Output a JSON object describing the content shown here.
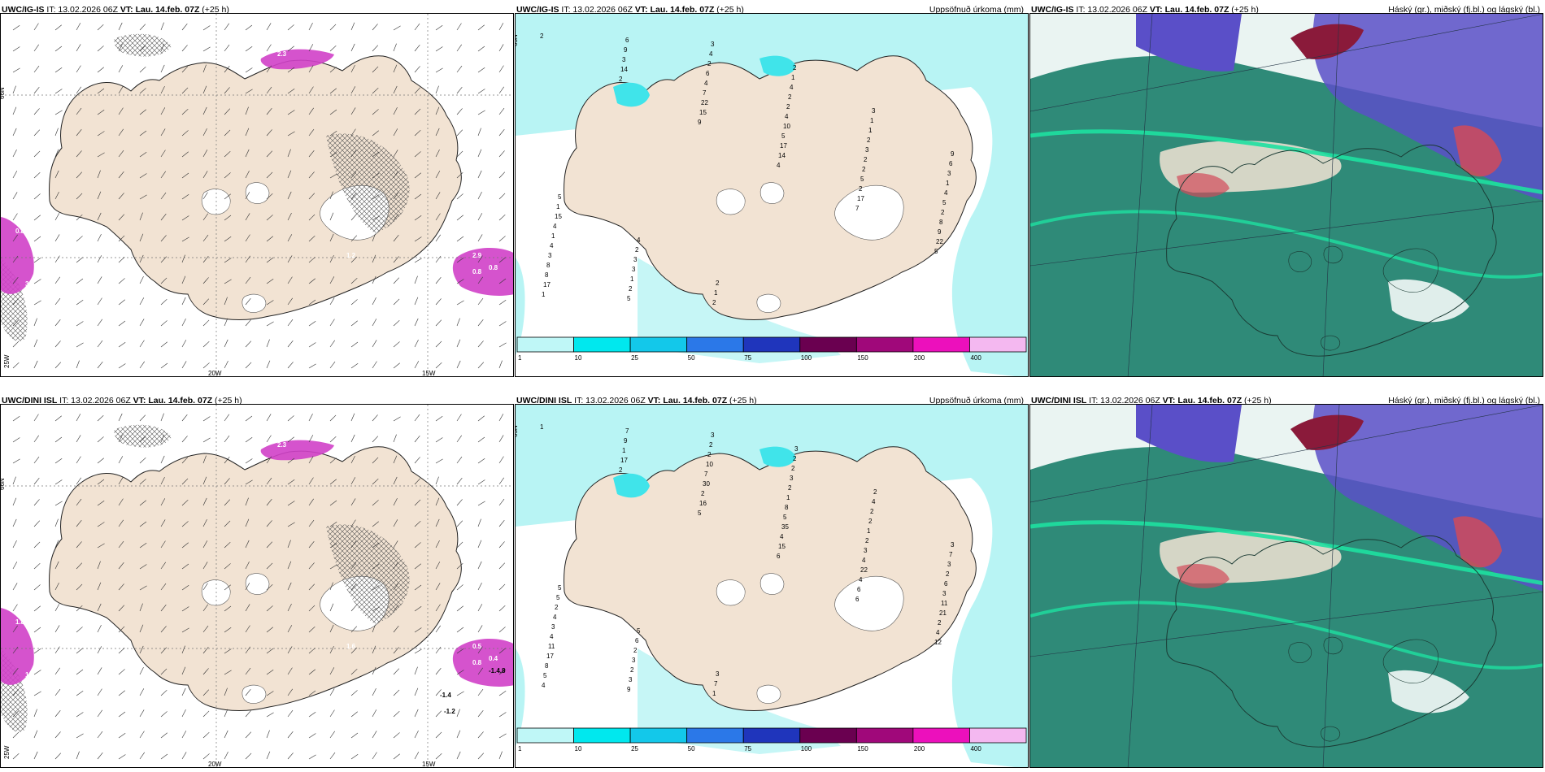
{
  "rows": [
    {
      "model": "UWC/IG-IS",
      "panels": [
        {
          "it": "IT: 13.02.2026 06Z",
          "vt": "VT: Lau. 14.feb. 07Z",
          "lead": "(+25 h)",
          "right": ""
        },
        {
          "it": "IT: 13.02.2026 06Z",
          "vt": "VT: Lau. 14.feb. 07Z",
          "lead": "(+25 h)",
          "right": "Uppsöfnuð úrkoma (mm)"
        },
        {
          "it": "IT: 13.02.2026 06Z",
          "vt": "VT: Lau. 14.feb. 07Z",
          "lead": "(+25 h)",
          "right": "Háský (gr.), miðský (fj.bl.) og lágský (bl.)"
        }
      ],
      "temp_labels": [
        "2.3",
        "0.8",
        "1.1",
        "0.8",
        "3.4",
        "2.9",
        "0.8",
        "1.8",
        "1.2"
      ],
      "precip_labels": [
        "2",
        "2",
        "9",
        "4",
        "7",
        "5",
        "1",
        "14",
        "15",
        "14",
        "17",
        "22",
        "17",
        "3",
        "22",
        "17",
        "2",
        "9",
        "8",
        "9",
        "7",
        "5",
        "5",
        "8",
        "8",
        "6",
        "4",
        "10",
        "2",
        "2",
        "3",
        "5",
        "6",
        "4",
        "2",
        "5",
        "4",
        "2",
        "2",
        "2",
        "3",
        "4",
        "1",
        "1",
        "4",
        "2",
        "2",
        "1",
        "4",
        "3",
        "3",
        "4",
        "1",
        "3",
        "15",
        "3",
        "2",
        "1",
        "1",
        "6",
        "1",
        "2",
        "1",
        "2",
        "3",
        "9",
        "5",
        "4",
        "2"
      ]
    },
    {
      "model": "UWC/DINI ISL",
      "panels": [
        {
          "it": "IT: 13.02.2026 06Z",
          "vt": "VT: Lau. 14.feb. 07Z",
          "lead": "(+25 h)",
          "right": ""
        },
        {
          "it": "IT: 13.02.2026 06Z",
          "vt": "VT: Lau. 14.feb. 07Z",
          "lead": "(+25 h)",
          "right": "Uppsöfnuð úrkoma (mm)"
        },
        {
          "it": "IT: 13.02.2026 06Z",
          "vt": "VT: Lau. 14.feb. 07Z",
          "lead": "(+25 h)",
          "right": "Háský (gr.), miðský (fj.bl.) og lágský (bl.)"
        }
      ],
      "temp_labels": [
        "2.3",
        "1.8",
        "0.4",
        "0.8",
        "1.2",
        "0.5",
        "0.4",
        "1.0",
        "1.6",
        "-1.4",
        "-1.2",
        "-1.4.8"
      ],
      "precip_labels": [
        "1",
        "2",
        "5",
        "6",
        "6",
        "12",
        "4",
        "17",
        "16",
        "15",
        "6",
        "4",
        "5",
        "1",
        "2",
        "4",
        "4",
        "2",
        "8",
        "9",
        "30",
        "35",
        "22",
        "21",
        "17",
        "7",
        "7",
        "5",
        "4",
        "11",
        "11",
        "9",
        "10",
        "8",
        "3",
        "3",
        "4",
        "3",
        "2",
        "1",
        "2",
        "6",
        "3",
        "2",
        "2",
        "2",
        "1",
        "2",
        "4",
        "3",
        "3",
        "3",
        "2",
        "3",
        "2",
        "2",
        "1",
        "2",
        "2",
        "7",
        "5",
        "6",
        "7",
        "2",
        "4",
        "3",
        "5",
        "5",
        "3",
        "3",
        "2"
      ]
    }
  ],
  "axes": {
    "lat_label": "66N",
    "lon_labels": [
      "25W",
      "20W",
      "15W"
    ],
    "mid_lat_label": "65N"
  },
  "colorbar": {
    "ticks": [
      "1",
      "10",
      "25",
      "50",
      "75",
      "100",
      "150",
      "200",
      "400"
    ],
    "colors": [
      "#bff7f7",
      "#00e8ee",
      "#13c8ea",
      "#2b78e8",
      "#1f35bc",
      "#6a0050",
      "#a0087a",
      "#ec10bc",
      "#f4b8f0"
    ]
  },
  "colors": {
    "land": "#f2e3d3",
    "sea": "#ffffff",
    "ice": "#ffffff",
    "precip_light": "#b8f4f4",
    "precip_med": "#40e4ea",
    "cloud_low": "#3aa88a",
    "cloud_mid": "#5a4fc8",
    "cloud_high": "#d14a5a"
  }
}
